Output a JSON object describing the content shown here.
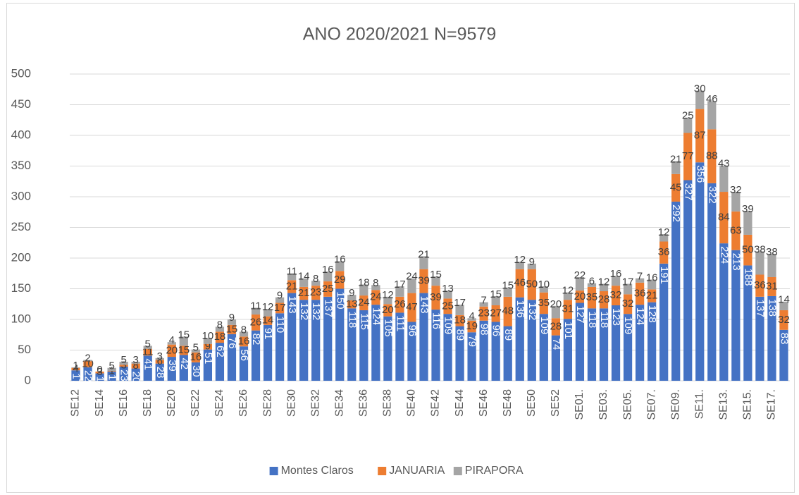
{
  "chart_data": {
    "type": "stacked_bar",
    "title": "ANO 2020/2021 N=9579",
    "categories": [
      "SE12",
      null,
      "SE14",
      null,
      "SE16",
      null,
      "SE18",
      null,
      "SE20",
      null,
      "SE22",
      null,
      "SE24",
      null,
      "SE26",
      null,
      "SE28",
      null,
      "SE30",
      null,
      "SE32",
      null,
      "SE34",
      null,
      "SE36",
      null,
      "SE38",
      null,
      "SE40",
      null,
      "SE42",
      null,
      "SE44",
      null,
      "SE46",
      null,
      "SE48",
      null,
      "SE50",
      null,
      "SE52",
      null,
      "SE01.",
      null,
      "SE03.",
      null,
      "SE05.",
      null,
      "SE07.",
      null,
      "SE09.",
      null,
      "SE11.",
      null,
      "SE13.",
      null,
      "SE15.",
      null,
      "SE17.",
      null
    ],
    "series": [
      {
        "name": "Montes Claros",
        "color": "#4472c4",
        "values": [
          17,
          22,
          12,
          15,
          23,
          20,
          41,
          28,
          39,
          42,
          30,
          51,
          62,
          76,
          56,
          82,
          91,
          110,
          143,
          132,
          132,
          137,
          150,
          118,
          115,
          124,
          105,
          111,
          96,
          143,
          116,
          109,
          89,
          79,
          98,
          96,
          89,
          136,
          132,
          109,
          74,
          101,
          127,
          118,
          118,
          123,
          109,
          124,
          128,
          191,
          292,
          327,
          356,
          322,
          224,
          213,
          188,
          137,
          138,
          83
        ]
      },
      {
        "name": "JANUARIA",
        "color": "#ed7d31",
        "values": [
          4,
          10,
          3,
          1,
          3,
          8,
          11,
          6,
          20,
          15,
          16,
          9,
          18,
          15,
          16,
          26,
          14,
          17,
          21,
          21,
          23,
          25,
          29,
          13,
          24,
          24,
          20,
          26,
          47,
          39,
          39,
          25,
          18,
          19,
          23,
          27,
          48,
          46,
          50,
          35,
          28,
          31,
          20,
          35,
          28,
          32,
          32,
          36,
          21,
          36,
          45,
          77,
          87,
          88,
          84,
          63,
          50,
          36,
          31,
          32
        ]
      },
      {
        "name": "PIRAPORA",
        "color": "#a5a5a5",
        "values": [
          1,
          2,
          0,
          5,
          5,
          3,
          5,
          3,
          4,
          15,
          5,
          10,
          8,
          9,
          8,
          11,
          12,
          9,
          11,
          14,
          8,
          16,
          16,
          9,
          18,
          8,
          12,
          17,
          24,
          21,
          15,
          13,
          17,
          4,
          7,
          15,
          15,
          12,
          9,
          10,
          20,
          12,
          22,
          6,
          12,
          16,
          17,
          7,
          16,
          12,
          21,
          25,
          30,
          46,
          43,
          32,
          39,
          38,
          38,
          14
        ]
      }
    ],
    "ylim": [
      0,
      500
    ],
    "yticks": [
      0,
      50,
      100,
      150,
      200,
      250,
      300,
      350,
      400,
      450,
      500
    ],
    "grid": true,
    "legend": "bottom"
  }
}
